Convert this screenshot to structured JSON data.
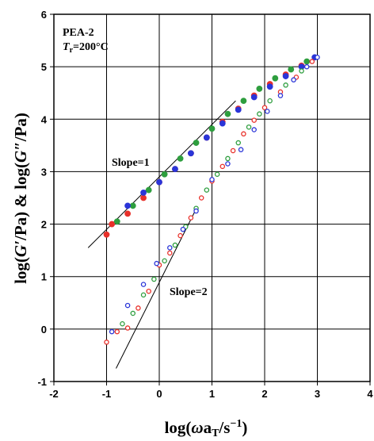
{
  "chart_data": {
    "type": "scatter",
    "title": "",
    "xlabel": "log(ωa_T/s⁻¹)",
    "ylabel": "log(G′/Pa) & log(G″/Pa)",
    "xlim": [
      -2,
      4
    ],
    "ylim": [
      -1,
      6
    ],
    "x_ticks": [
      -2,
      -1,
      0,
      1,
      2,
      3,
      4
    ],
    "y_ticks": [
      -1,
      0,
      1,
      2,
      3,
      4,
      5,
      6
    ],
    "grid": true,
    "annotations": {
      "sample": "PEA-2",
      "temperature": "T_r=200°C",
      "slope1": "Slope=1",
      "slope2": "Slope=2"
    },
    "colors": {
      "red": "#e8302a",
      "green": "#2e9e3e",
      "blue": "#2a35d8"
    },
    "series": [
      {
        "color": "red",
        "fill": "filled",
        "x": [
          -1.0,
          -0.9,
          -0.6,
          -0.3,
          0.0,
          0.3,
          0.6,
          0.9,
          1.2,
          1.5,
          1.8,
          2.1,
          2.4,
          2.7
        ],
        "y": [
          1.8,
          2.0,
          2.2,
          2.5,
          2.8,
          3.05,
          3.35,
          3.65,
          3.95,
          4.2,
          4.45,
          4.67,
          4.85,
          5.02
        ]
      },
      {
        "color": "green",
        "fill": "filled",
        "x": [
          -0.8,
          -0.5,
          -0.2,
          0.1,
          0.4,
          0.7,
          1.0,
          1.3,
          1.6,
          1.9,
          2.2,
          2.5,
          2.8
        ],
        "y": [
          2.05,
          2.35,
          2.65,
          2.95,
          3.25,
          3.55,
          3.82,
          4.1,
          4.35,
          4.58,
          4.78,
          4.95,
          5.1
        ]
      },
      {
        "color": "blue",
        "fill": "filled",
        "x": [
          -0.6,
          -0.3,
          0.0,
          0.3,
          0.6,
          0.9,
          1.2,
          1.5,
          1.8,
          2.1,
          2.4,
          2.7,
          2.95
        ],
        "y": [
          2.35,
          2.6,
          2.8,
          3.05,
          3.35,
          3.65,
          3.92,
          4.18,
          4.42,
          4.62,
          4.82,
          5.0,
          5.18
        ]
      },
      {
        "color": "red",
        "fill": "open",
        "x": [
          -1.0,
          -0.8,
          -0.6,
          -0.4,
          -0.2,
          0.0,
          0.2,
          0.4,
          0.6,
          0.8,
          1.0,
          1.2,
          1.4,
          1.6,
          1.8,
          2.0,
          2.3,
          2.6,
          2.9
        ],
        "y": [
          -0.25,
          -0.05,
          0.02,
          0.4,
          0.72,
          1.22,
          1.45,
          1.78,
          2.12,
          2.5,
          2.82,
          3.1,
          3.4,
          3.72,
          3.98,
          4.22,
          4.52,
          4.8,
          5.1
        ]
      },
      {
        "color": "green",
        "fill": "open",
        "x": [
          -0.7,
          -0.5,
          -0.3,
          -0.1,
          0.1,
          0.3,
          0.5,
          0.7,
          0.9,
          1.1,
          1.3,
          1.5,
          1.7,
          1.9,
          2.1,
          2.4,
          2.7
        ],
        "y": [
          0.1,
          0.3,
          0.65,
          0.95,
          1.3,
          1.6,
          1.95,
          2.3,
          2.65,
          2.95,
          3.25,
          3.55,
          3.85,
          4.1,
          4.35,
          4.65,
          4.92
        ]
      },
      {
        "color": "blue",
        "fill": "open",
        "x": [
          -0.9,
          -0.6,
          -0.3,
          -0.05,
          0.2,
          0.45,
          0.7,
          1.0,
          1.3,
          1.55,
          1.8,
          2.05,
          2.3,
          2.55,
          2.8,
          3.0
        ],
        "y": [
          -0.05,
          0.45,
          0.85,
          1.25,
          1.55,
          1.9,
          2.25,
          2.85,
          3.15,
          3.42,
          3.8,
          4.15,
          4.45,
          4.75,
          5.0,
          5.18
        ]
      }
    ],
    "reference_lines": [
      {
        "label": "slope1",
        "x": [
          -1.35,
          1.45
        ],
        "y": [
          1.55,
          4.35
        ]
      },
      {
        "label": "slope2",
        "x": [
          -0.82,
          0.72
        ],
        "y": [
          -0.75,
          2.33
        ]
      }
    ]
  }
}
